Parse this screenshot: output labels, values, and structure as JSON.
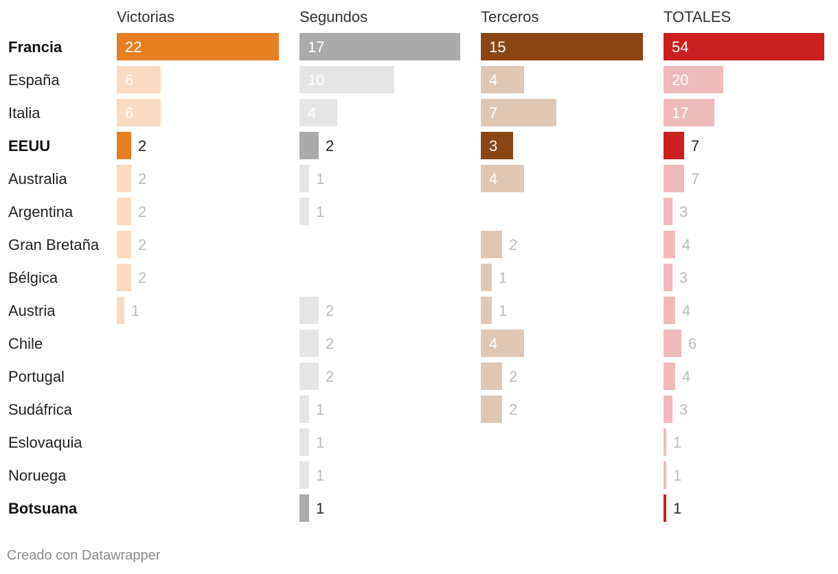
{
  "chart_data": {
    "type": "bar",
    "columns": [
      {
        "key": "victorias",
        "label": "Victorias",
        "highlight_color": "#E67E22",
        "muted_color": "#F8DBC0",
        "max": 22
      },
      {
        "key": "segundos",
        "label": "Segundos",
        "highlight_color": "#AAAAAA",
        "muted_color": "#E5E5E5",
        "max": 17
      },
      {
        "key": "terceros",
        "label": "Terceros",
        "highlight_color": "#8B4513",
        "muted_color": "#DFC7B6",
        "max": 15
      },
      {
        "key": "totales",
        "label": "TOTALES",
        "highlight_color": "#CC1F1F",
        "muted_color": "#EEBABA",
        "max": 54
      }
    ],
    "rows": [
      {
        "country": "Francia",
        "highlight": true,
        "victorias": 22,
        "segundos": 17,
        "terceros": 15,
        "totales": 54
      },
      {
        "country": "España",
        "highlight": false,
        "victorias": 6,
        "segundos": 10,
        "terceros": 4,
        "totales": 20
      },
      {
        "country": "Italia",
        "highlight": false,
        "victorias": 6,
        "segundos": 4,
        "terceros": 7,
        "totales": 17
      },
      {
        "country": "EEUU",
        "highlight": true,
        "victorias": 2,
        "segundos": 2,
        "terceros": 3,
        "totales": 7
      },
      {
        "country": "Australia",
        "highlight": false,
        "victorias": 2,
        "segundos": 1,
        "terceros": 4,
        "totales": 7
      },
      {
        "country": "Argentina",
        "highlight": false,
        "victorias": 2,
        "segundos": 1,
        "terceros": null,
        "totales": 3
      },
      {
        "country": "Gran Bretaña",
        "highlight": false,
        "victorias": 2,
        "segundos": null,
        "terceros": 2,
        "totales": 4
      },
      {
        "country": "Bélgica",
        "highlight": false,
        "victorias": 2,
        "segundos": null,
        "terceros": 1,
        "totales": 3
      },
      {
        "country": "Austria",
        "highlight": false,
        "victorias": 1,
        "segundos": 2,
        "terceros": 1,
        "totales": 4
      },
      {
        "country": "Chile",
        "highlight": false,
        "victorias": null,
        "segundos": 2,
        "terceros": 4,
        "totales": 6
      },
      {
        "country": "Portugal",
        "highlight": false,
        "victorias": null,
        "segundos": 2,
        "terceros": 2,
        "totales": 4
      },
      {
        "country": "Sudáfrica",
        "highlight": false,
        "victorias": null,
        "segundos": 1,
        "terceros": 2,
        "totales": 3
      },
      {
        "country": "Eslovaquia",
        "highlight": false,
        "victorias": null,
        "segundos": 1,
        "terceros": null,
        "totales": 1
      },
      {
        "country": "Noruega",
        "highlight": false,
        "victorias": null,
        "segundos": 1,
        "terceros": null,
        "totales": 1
      },
      {
        "country": "Botsuana",
        "highlight": true,
        "victorias": null,
        "segundos": 1,
        "terceros": null,
        "totales": 1
      }
    ]
  },
  "footer": {
    "credit": "Creado con Datawrapper"
  }
}
